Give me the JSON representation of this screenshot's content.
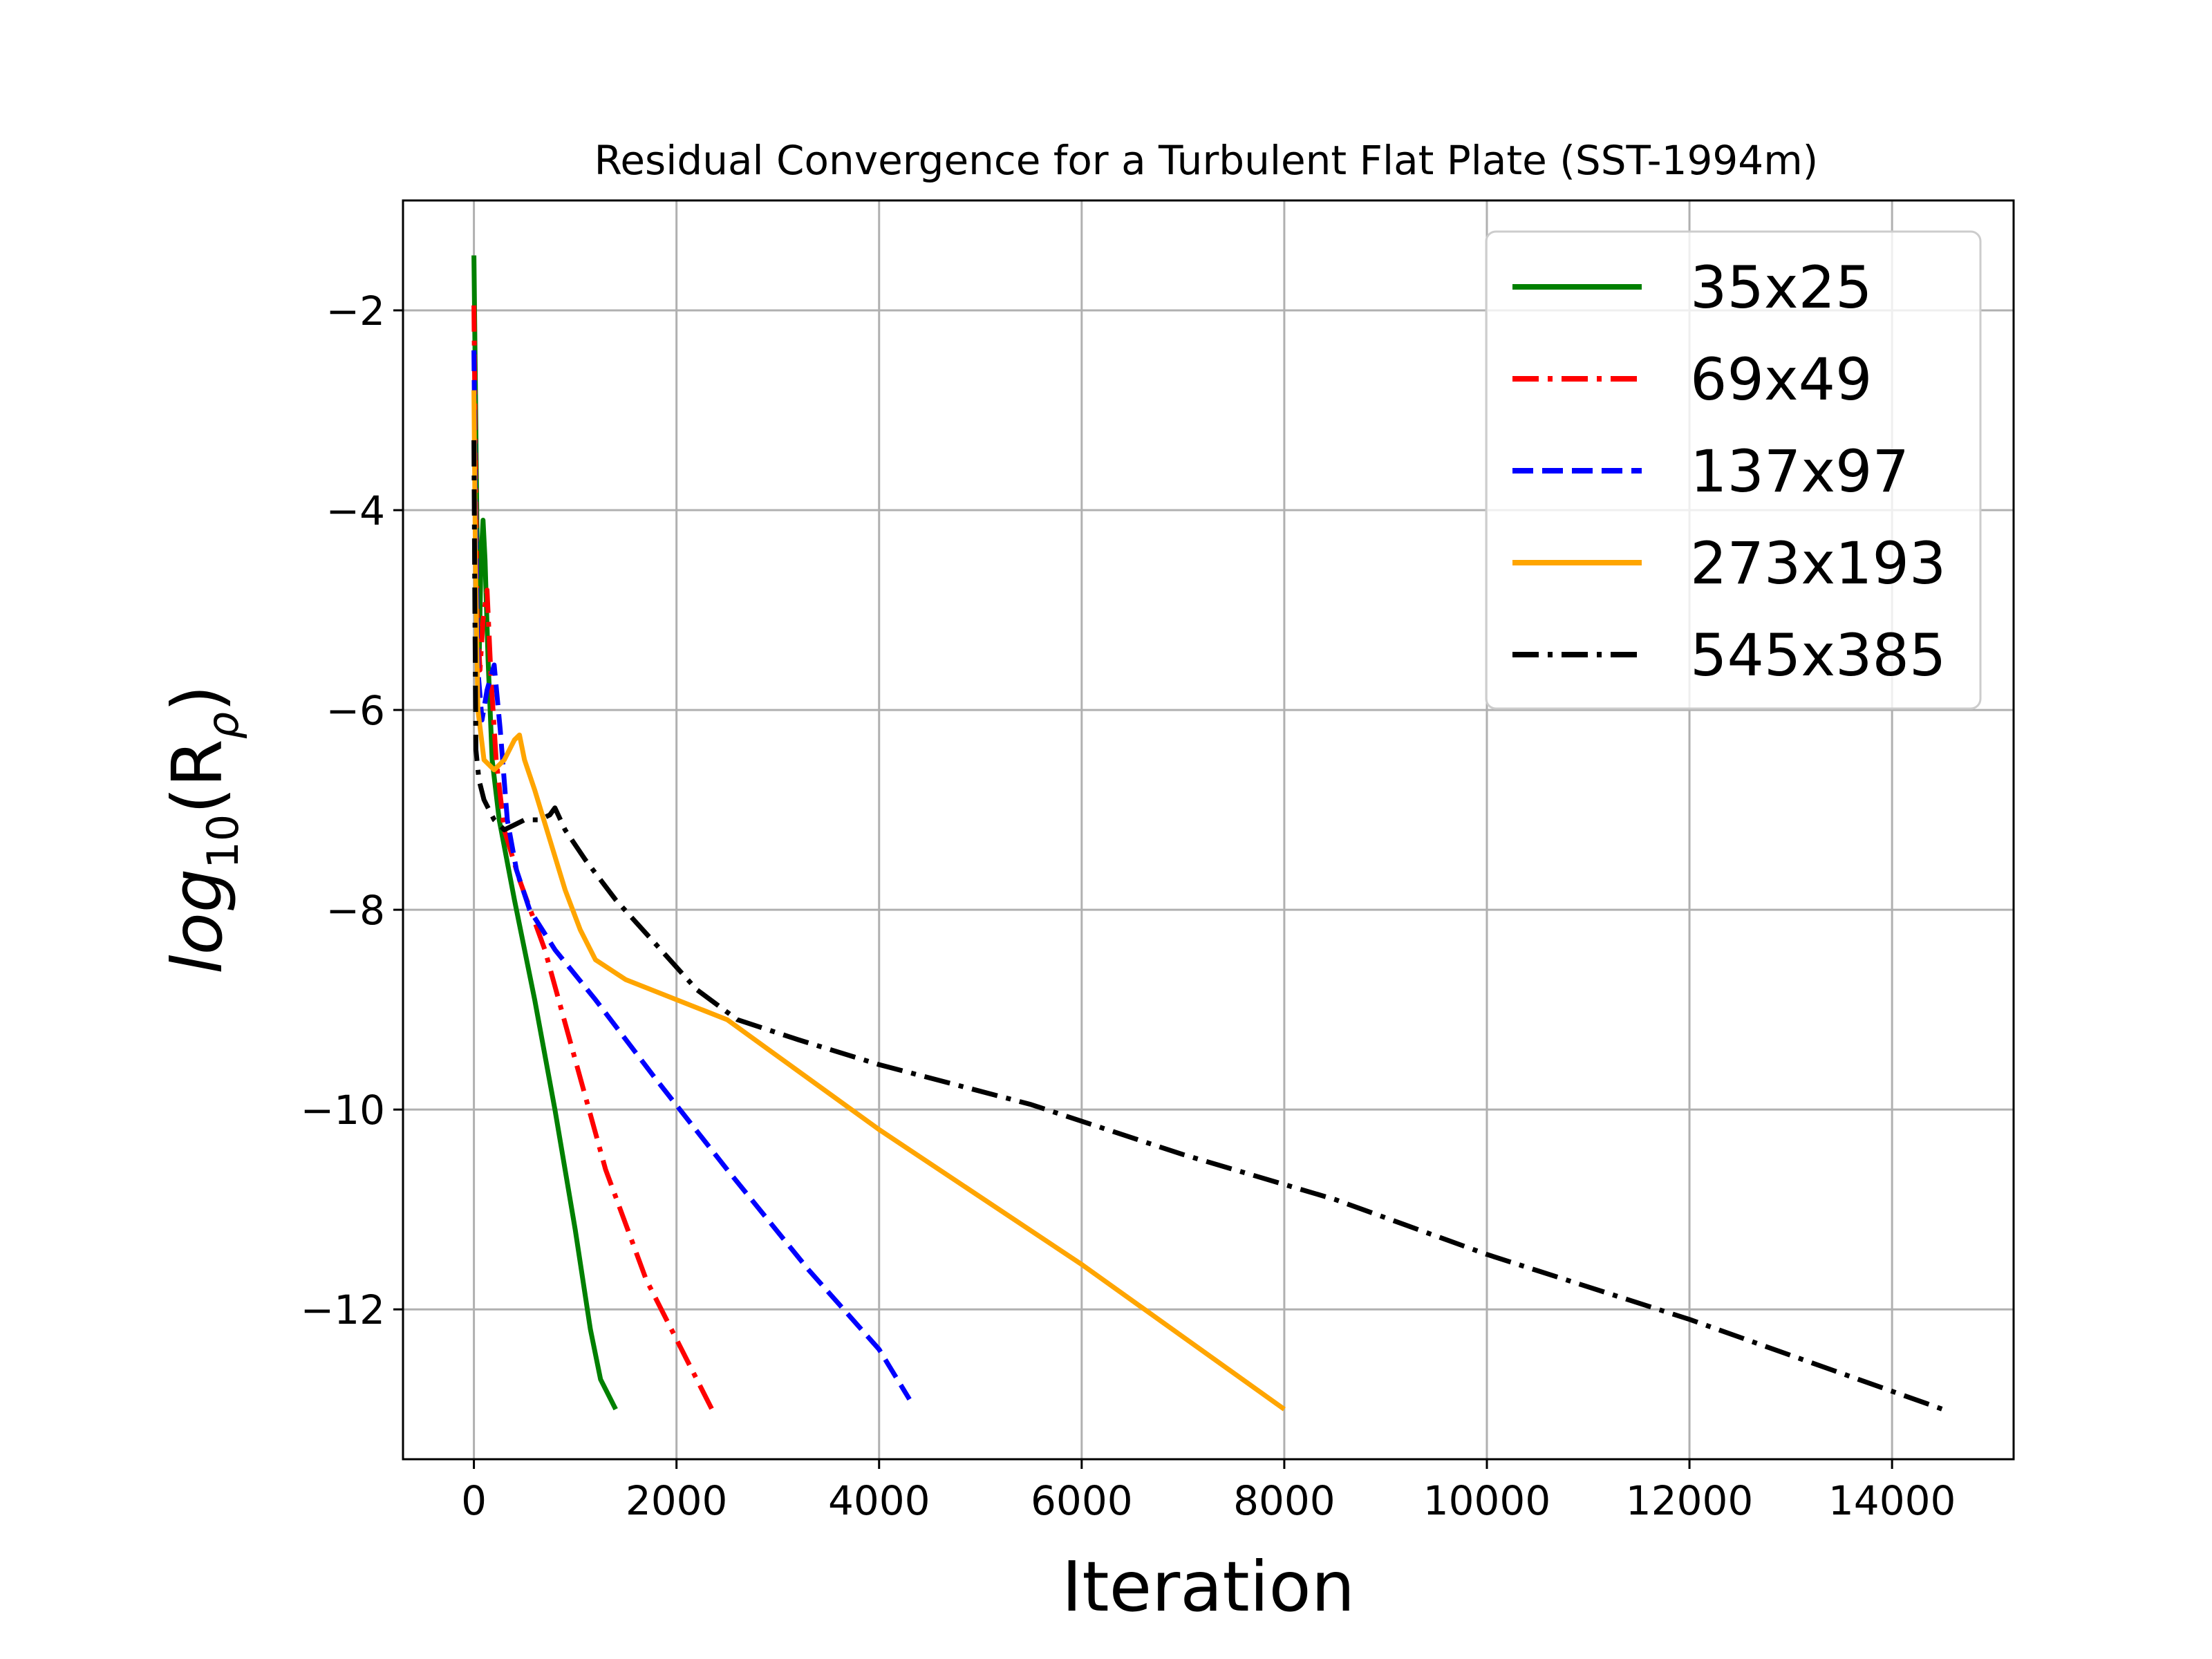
{
  "chart_data": {
    "type": "line",
    "title": "Residual Convergence for a Turbulent Flat Plate (SST-1994m)",
    "xlabel": "Iteration",
    "ylabel": {
      "base": "log",
      "sub1": "10",
      "mid": "(R",
      "sub2": "ρ",
      "end": ")"
    },
    "xlim": [
      -700,
      15200
    ],
    "ylim": [
      -13.5,
      -0.9
    ],
    "xticks": [
      0,
      2000,
      4000,
      6000,
      8000,
      10000,
      12000,
      14000
    ],
    "xtick_labels": [
      "0",
      "2000",
      "4000",
      "6000",
      "8000",
      "10000",
      "12000",
      "14000"
    ],
    "yticks": [
      -12,
      -10,
      -8,
      -6,
      -4,
      -2
    ],
    "ytick_labels": [
      "−12",
      "−10",
      "−8",
      "−6",
      "−4",
      "−2"
    ],
    "grid": true,
    "legend_position": "upper-right",
    "series": [
      {
        "name": "35x25",
        "color": "#008000",
        "style": "solid",
        "points": [
          [
            0,
            -1.45
          ],
          [
            15,
            -2.8
          ],
          [
            30,
            -4.2
          ],
          [
            50,
            -5.6
          ],
          [
            70,
            -4.5
          ],
          [
            90,
            -4.1
          ],
          [
            110,
            -4.5
          ],
          [
            140,
            -5.5
          ],
          [
            180,
            -6.5
          ],
          [
            250,
            -7.1
          ],
          [
            400,
            -7.9
          ],
          [
            600,
            -8.9
          ],
          [
            800,
            -10.0
          ],
          [
            1000,
            -11.2
          ],
          [
            1150,
            -12.2
          ],
          [
            1250,
            -12.7
          ],
          [
            1400,
            -13.0
          ]
        ]
      },
      {
        "name": "69x49",
        "color": "#ff0000",
        "style": "dashdot",
        "points": [
          [
            0,
            -1.95
          ],
          [
            15,
            -3.5
          ],
          [
            30,
            -5.0
          ],
          [
            60,
            -5.6
          ],
          [
            90,
            -5.1
          ],
          [
            130,
            -4.8
          ],
          [
            170,
            -5.7
          ],
          [
            220,
            -6.5
          ],
          [
            300,
            -7.2
          ],
          [
            450,
            -7.7
          ],
          [
            700,
            -8.4
          ],
          [
            1000,
            -9.5
          ],
          [
            1300,
            -10.6
          ],
          [
            1700,
            -11.7
          ],
          [
            2100,
            -12.5
          ],
          [
            2350,
            -13.0
          ]
        ]
      },
      {
        "name": "137x97",
        "color": "#0000ff",
        "style": "dashed",
        "points": [
          [
            0,
            -2.4
          ],
          [
            15,
            -4.0
          ],
          [
            40,
            -5.6
          ],
          [
            80,
            -6.1
          ],
          [
            130,
            -5.8
          ],
          [
            200,
            -5.55
          ],
          [
            260,
            -6.2
          ],
          [
            330,
            -7.1
          ],
          [
            420,
            -7.6
          ],
          [
            550,
            -8.0
          ],
          [
            800,
            -8.4
          ],
          [
            1200,
            -8.9
          ],
          [
            1800,
            -9.7
          ],
          [
            2500,
            -10.6
          ],
          [
            3300,
            -11.6
          ],
          [
            4000,
            -12.4
          ],
          [
            4300,
            -12.9
          ]
        ]
      },
      {
        "name": "273x193",
        "color": "#ffa500",
        "style": "solid",
        "points": [
          [
            0,
            -2.8
          ],
          [
            15,
            -4.5
          ],
          [
            40,
            -6.0
          ],
          [
            100,
            -6.5
          ],
          [
            200,
            -6.6
          ],
          [
            300,
            -6.5
          ],
          [
            400,
            -6.3
          ],
          [
            450,
            -6.25
          ],
          [
            500,
            -6.5
          ],
          [
            600,
            -6.8
          ],
          [
            750,
            -7.3
          ],
          [
            900,
            -7.8
          ],
          [
            1050,
            -8.2
          ],
          [
            1200,
            -8.5
          ],
          [
            1500,
            -8.7
          ],
          [
            2500,
            -9.1
          ],
          [
            4000,
            -10.2
          ],
          [
            6000,
            -11.55
          ],
          [
            8000,
            -13.0
          ]
        ]
      },
      {
        "name": "545x385",
        "color": "#000000",
        "style": "dashdot",
        "points": [
          [
            0,
            -3.3
          ],
          [
            10,
            -5.0
          ],
          [
            20,
            -6.4
          ],
          [
            50,
            -6.7
          ],
          [
            100,
            -6.9
          ],
          [
            200,
            -7.1
          ],
          [
            300,
            -7.2
          ],
          [
            400,
            -7.15
          ],
          [
            500,
            -7.1
          ],
          [
            650,
            -7.1
          ],
          [
            750,
            -7.05
          ],
          [
            800,
            -6.98
          ],
          [
            900,
            -7.2
          ],
          [
            1100,
            -7.5
          ],
          [
            1400,
            -7.9
          ],
          [
            1800,
            -8.35
          ],
          [
            2200,
            -8.8
          ],
          [
            2600,
            -9.1
          ],
          [
            3200,
            -9.3
          ],
          [
            4000,
            -9.55
          ],
          [
            5500,
            -9.95
          ],
          [
            7000,
            -10.45
          ],
          [
            8500,
            -10.9
          ],
          [
            10000,
            -11.45
          ],
          [
            12000,
            -12.1
          ],
          [
            14500,
            -13.0
          ]
        ]
      }
    ]
  }
}
